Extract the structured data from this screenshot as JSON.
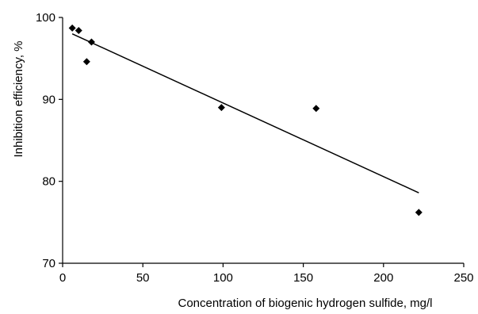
{
  "chart_data": {
    "type": "scatter",
    "title": "",
    "xlabel": "Concentration of biogenic hydrogen sulfide, mg/l",
    "ylabel": "Inhibition efficiency, %",
    "xlim": [
      0,
      250
    ],
    "ylim": [
      70,
      100
    ],
    "x_ticks": [
      0,
      50,
      100,
      150,
      200,
      250
    ],
    "y_ticks": [
      70,
      80,
      90,
      100
    ],
    "x_tick_labels": [
      "0",
      "50",
      "100",
      "150",
      "200",
      "250"
    ],
    "y_tick_labels": [
      "70",
      "80",
      "90",
      "100"
    ],
    "grid": false,
    "legend": "none",
    "marker": "diamond",
    "colors": {
      "marker": "#000000",
      "trendline": "#000000",
      "axis": "#000000"
    },
    "series": [
      {
        "points": [
          {
            "x": 6,
            "y": 98.7
          },
          {
            "x": 10,
            "y": 98.4
          },
          {
            "x": 15,
            "y": 94.6
          },
          {
            "x": 18,
            "y": 97.0
          },
          {
            "x": 99,
            "y": 89.0
          },
          {
            "x": 158,
            "y": 88.9
          },
          {
            "x": 222,
            "y": 76.2
          }
        ]
      }
    ],
    "trendline": {
      "type": "linear",
      "x": [
        6,
        222
      ],
      "y": [
        98.0,
        78.6
      ]
    }
  }
}
